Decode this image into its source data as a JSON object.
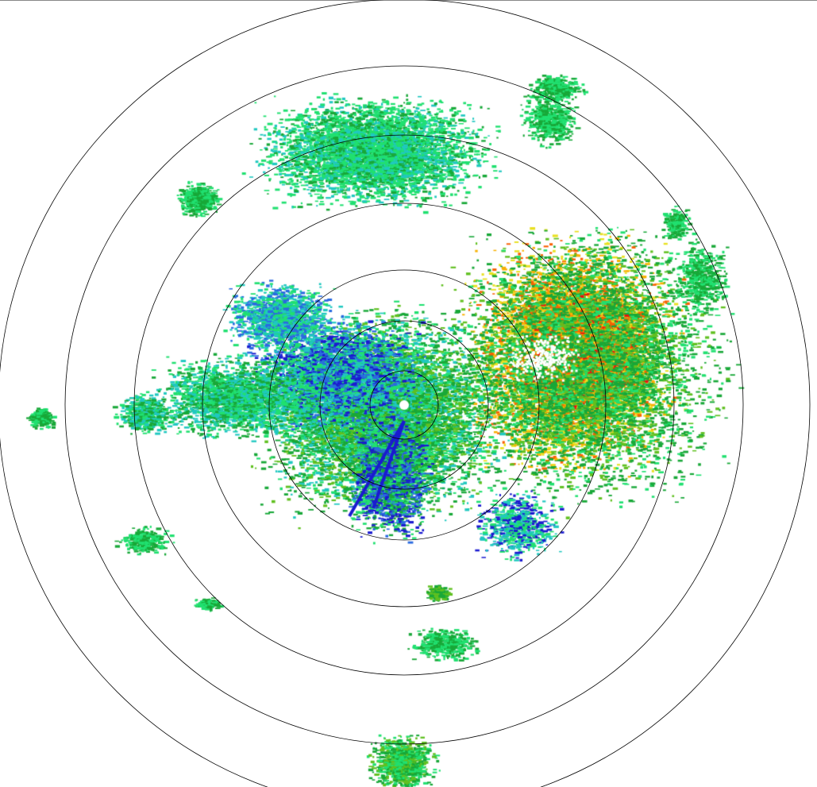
{
  "display": {
    "type": "radar-ppi",
    "range_ring_count": 7,
    "ring_color": "#000000",
    "background": "#ffffff",
    "reflectivity_palette": [
      "#1a1ad0",
      "#2a6ae0",
      "#20c8c0",
      "#20e070",
      "#18a838",
      "#60c020",
      "#e8e020",
      "#f8b000",
      "#f86000",
      "#e81010",
      "#ffffff"
    ]
  }
}
